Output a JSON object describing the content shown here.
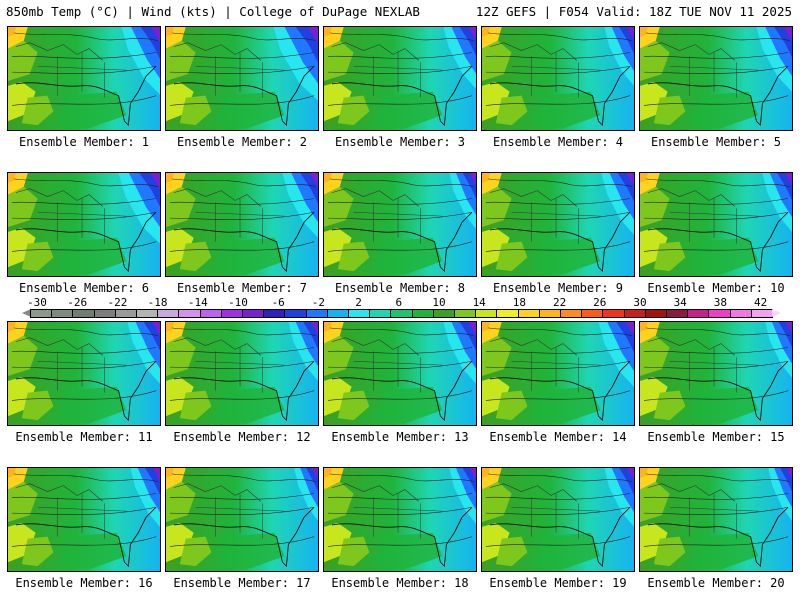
{
  "header": {
    "left": "850mb Temp (°C) | Wind (kts) | College of DuPage NEXLAB",
    "right": "12Z GEFS | F054 Valid: 18Z TUE NOV 11 2025"
  },
  "panels": [
    {
      "label": "Ensemble Member: 1",
      "cold_level": 0.65
    },
    {
      "label": "Ensemble Member: 2",
      "cold_level": 0.75
    },
    {
      "label": "Ensemble Member: 3",
      "cold_level": 0.55
    },
    {
      "label": "Ensemble Member: 4",
      "cold_level": 0.5
    },
    {
      "label": "Ensemble Member: 5",
      "cold_level": 0.6
    },
    {
      "label": "Ensemble Member: 6",
      "cold_level": 0.7
    },
    {
      "label": "Ensemble Member: 7",
      "cold_level": 0.6
    },
    {
      "label": "Ensemble Member: 8",
      "cold_level": 0.45
    },
    {
      "label": "Ensemble Member: 9",
      "cold_level": 0.55
    },
    {
      "label": "Ensemble Member: 10",
      "cold_level": 0.5
    },
    {
      "label": "Ensemble Member: 11",
      "cold_level": 0.55
    },
    {
      "label": "Ensemble Member: 12",
      "cold_level": 0.5
    },
    {
      "label": "Ensemble Member: 13",
      "cold_level": 0.55
    },
    {
      "label": "Ensemble Member: 14",
      "cold_level": 0.6
    },
    {
      "label": "Ensemble Member: 15",
      "cold_level": 0.45
    },
    {
      "label": "Ensemble Member: 16",
      "cold_level": 0.5
    },
    {
      "label": "Ensemble Member: 17",
      "cold_level": 0.4
    },
    {
      "label": "Ensemble Member: 18",
      "cold_level": 0.45
    },
    {
      "label": "Ensemble Member: 19",
      "cold_level": 0.5
    },
    {
      "label": "Ensemble Member: 20",
      "cold_level": 0.4
    }
  ],
  "colorbar": {
    "tick_labels": [
      "-30",
      "-26",
      "-22",
      "-18",
      "-14",
      "-10",
      "-6",
      "-2",
      "2",
      "6",
      "10",
      "14",
      "18",
      "22",
      "26",
      "30",
      "34",
      "38",
      "42"
    ],
    "colors": [
      "#8c9a8c",
      "#7d8c7d",
      "#6f7f6f",
      "#7d7d7d",
      "#9a9a9a",
      "#b4b4b4",
      "#c9a8e0",
      "#d890f0",
      "#c060f0",
      "#a030e0",
      "#7a20d0",
      "#3020c0",
      "#2040e0",
      "#1f78ff",
      "#15b4f0",
      "#27e6f0",
      "#1fd6b4",
      "#1ec46e",
      "#20b43c",
      "#3ca022",
      "#7ec81e",
      "#c8e61e",
      "#f0f01e",
      "#ffd21e",
      "#ffb41e",
      "#ff8c1e",
      "#ff5a1e",
      "#f0321e",
      "#c81e1e",
      "#a01414",
      "#8c1a3c",
      "#c81e8c",
      "#f03cc8",
      "#f078e6",
      "#f5a0f0"
    ]
  }
}
